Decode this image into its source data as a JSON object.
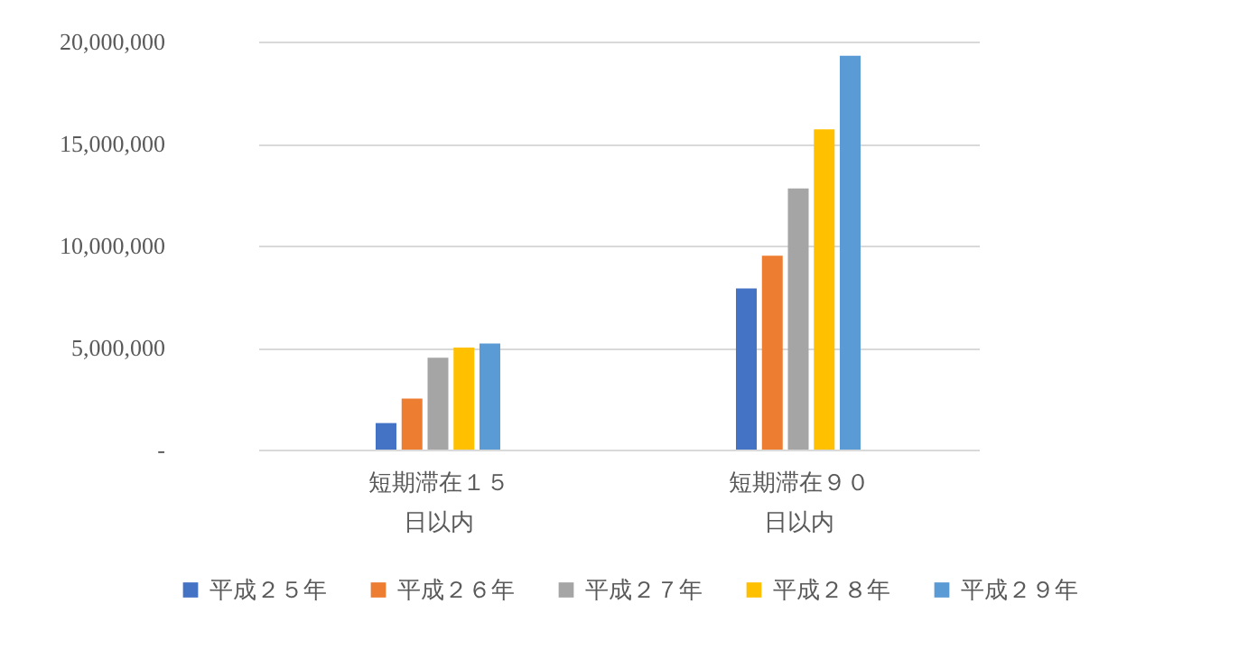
{
  "chart_data": {
    "type": "bar",
    "categories": [
      "短期滞在１５日以内",
      "短期滞在９０日以内"
    ],
    "series": [
      {
        "name": "平成２５年",
        "color": "#4472c4",
        "values": [
          1300000,
          7900000
        ]
      },
      {
        "name": "平成２６年",
        "color": "#ed7d31",
        "values": [
          2500000,
          9500000
        ]
      },
      {
        "name": "平成２７年",
        "color": "#a5a5a5",
        "values": [
          4500000,
          12800000
        ]
      },
      {
        "name": "平成２８年",
        "color": "#ffc000",
        "values": [
          5000000,
          15700000
        ]
      },
      {
        "name": "平成２９年",
        "color": "#5b9bd5",
        "values": [
          5200000,
          19300000
        ]
      }
    ],
    "ylim": [
      0,
      20000000
    ],
    "yticks": [
      {
        "value": 0,
        "label": "-"
      },
      {
        "value": 5000000,
        "label": "5,000,000"
      },
      {
        "value": 10000000,
        "label": "10,000,000"
      },
      {
        "value": 15000000,
        "label": "15,000,000"
      },
      {
        "value": 20000000,
        "label": "20,000,000"
      }
    ],
    "grid": "y",
    "legend": "bottom"
  }
}
